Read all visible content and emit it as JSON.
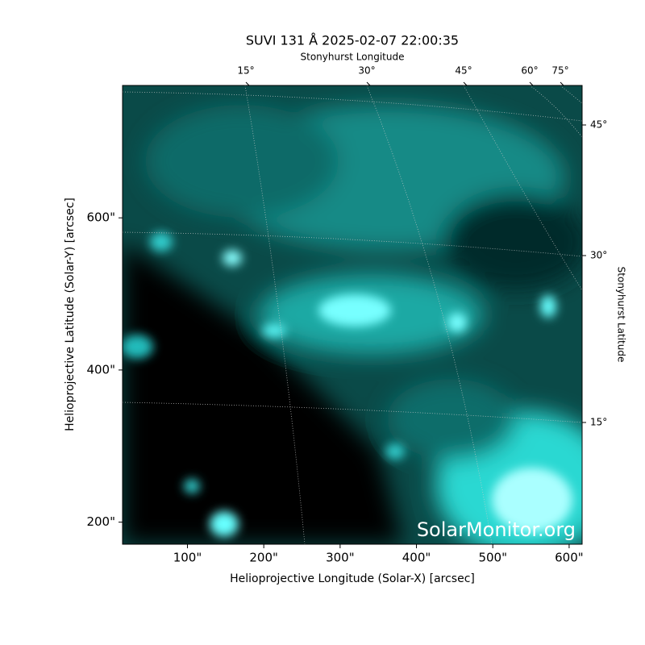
{
  "chart_data": {
    "type": "image",
    "title": "SUVI 131 Å 2025-02-07 22:00:35",
    "xlabel": "Helioprojective Longitude (Solar-X) [arcsec]",
    "ylabel": "Helioprojective Latitude (Solar-Y) [arcsec]",
    "top_label": "Stonyhurst Longitude",
    "right_label": "Stonyhurst Latitude",
    "watermark": "SolarMonitor.org",
    "xlim": [
      15,
      617
    ],
    "ylim": [
      171,
      774
    ],
    "xticks": [
      {
        "value": 100,
        "label": "100\""
      },
      {
        "value": 200,
        "label": "200\""
      },
      {
        "value": 300,
        "label": "300\""
      },
      {
        "value": 400,
        "label": "400\""
      },
      {
        "value": 500,
        "label": "500\""
      },
      {
        "value": 600,
        "label": "600\""
      }
    ],
    "yticks": [
      {
        "value": 200,
        "label": "200\""
      },
      {
        "value": 400,
        "label": "400\""
      },
      {
        "value": 600,
        "label": "600\""
      }
    ],
    "top_ticks": [
      {
        "value": 15,
        "label": "15°"
      },
      {
        "value": 30,
        "label": "30°"
      },
      {
        "value": 45,
        "label": "45°"
      },
      {
        "value": 60,
        "label": "60°"
      },
      {
        "value": 75,
        "label": "75°"
      }
    ],
    "right_ticks": [
      {
        "value": 45,
        "label": "45°"
      },
      {
        "value": 30,
        "label": "30°"
      },
      {
        "value": 15,
        "label": "15°"
      }
    ]
  }
}
